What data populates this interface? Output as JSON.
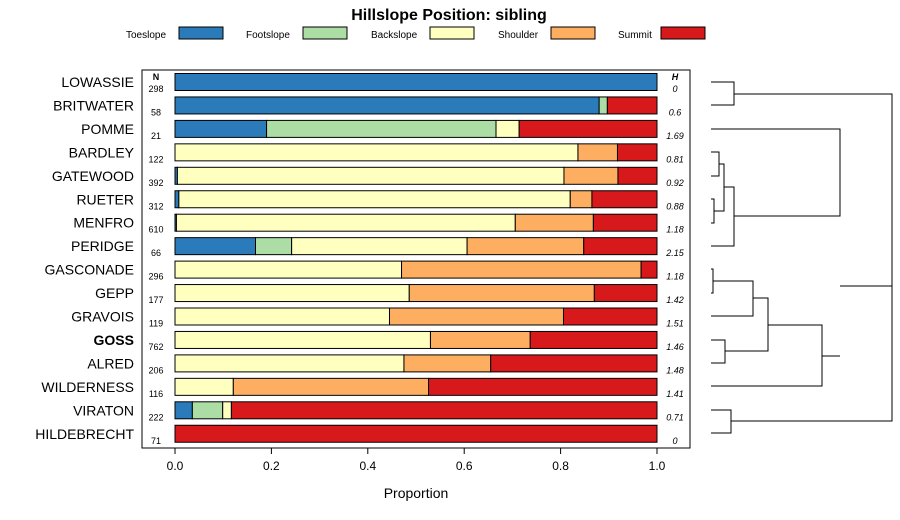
{
  "chart_data": {
    "type": "bar",
    "stacked": true,
    "orientation": "horizontal",
    "title": "Hillslope Position: sibling",
    "xlabel": "Proportion",
    "xlim": [
      0,
      1
    ],
    "x_ticks": [
      "0.0",
      "0.2",
      "0.4",
      "0.6",
      "0.8",
      "1.0"
    ],
    "n_header": "N",
    "h_header": "H",
    "highlight": "GOSS",
    "legend_position": "top",
    "legend": [
      {
        "name": "Toeslope",
        "color": "#2b7bba"
      },
      {
        "name": "Footslope",
        "color": "#abdda4"
      },
      {
        "name": "Backslope",
        "color": "#ffffbf"
      },
      {
        "name": "Shoulder",
        "color": "#fdae61"
      },
      {
        "name": "Summit",
        "color": "#d7191c"
      }
    ],
    "categories": [
      "LOWASSIE",
      "BRITWATER",
      "POMME",
      "BARDLEY",
      "GATEWOOD",
      "RUETER",
      "MENFRO",
      "PERIDGE",
      "GASCONADE",
      "GEPP",
      "GRAVOIS",
      "GOSS",
      "ALRED",
      "WILDERNESS",
      "VIRATON",
      "HILDEBRECHT"
    ],
    "n": [
      "298",
      "58",
      "21",
      "122",
      "392",
      "312",
      "610",
      "66",
      "296",
      "177",
      "119",
      "762",
      "206",
      "116",
      "222",
      "71"
    ],
    "h": [
      "0",
      "0.6",
      "1.69",
      "0.81",
      "0.92",
      "0.88",
      "1.18",
      "2.15",
      "1.18",
      "1.42",
      "1.51",
      "1.46",
      "1.48",
      "1.41",
      "0.71",
      "0"
    ],
    "series": [
      {
        "name": "Toeslope",
        "values": [
          1.0,
          0.88,
          0.19,
          0,
          0.005,
          0.008,
          0.003,
          0.167,
          0,
          0,
          0,
          0,
          0,
          0,
          0.036,
          0
        ]
      },
      {
        "name": "Footslope",
        "values": [
          0,
          0.017,
          0.476,
          0,
          0,
          0,
          0,
          0.075,
          0,
          0,
          0,
          0,
          0,
          0,
          0.063,
          0
        ]
      },
      {
        "name": "Backslope",
        "values": [
          0,
          0,
          0.048,
          0.836,
          0.802,
          0.812,
          0.703,
          0.364,
          0.47,
          0.486,
          0.445,
          0.53,
          0.475,
          0.121,
          0.018,
          0
        ]
      },
      {
        "name": "Shoulder",
        "values": [
          0,
          0,
          0,
          0.082,
          0.112,
          0.045,
          0.162,
          0.242,
          0.497,
          0.384,
          0.361,
          0.207,
          0.18,
          0.405,
          0,
          0
        ]
      },
      {
        "name": "Summit",
        "values": [
          0,
          0.103,
          0.286,
          0.082,
          0.081,
          0.135,
          0.132,
          0.152,
          0.033,
          0.13,
          0.194,
          0.263,
          0.345,
          0.474,
          0.883,
          1.0
        ]
      }
    ]
  }
}
